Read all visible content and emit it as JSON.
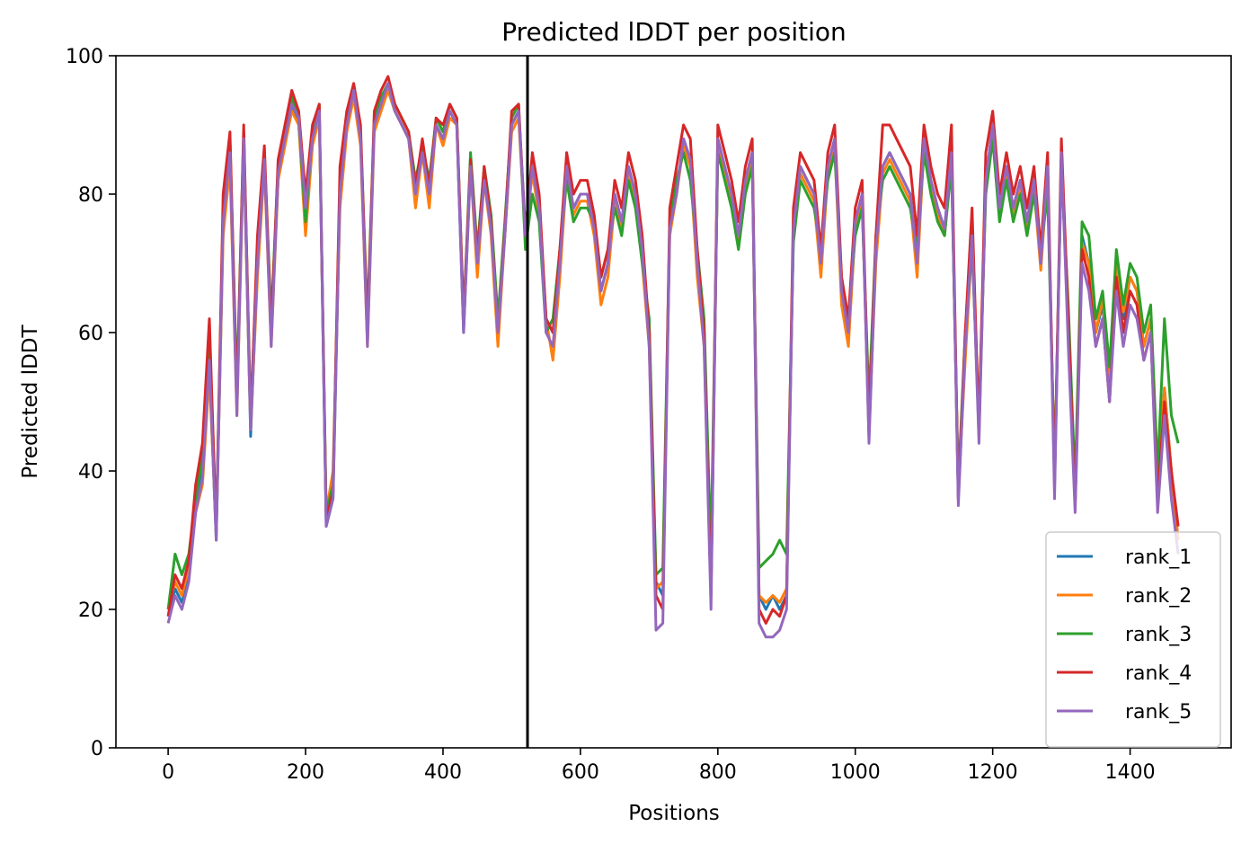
{
  "chart_data": {
    "type": "line",
    "title": "Predicted lDDT per position",
    "xlabel": "Positions",
    "ylabel": "Predicted lDDT",
    "xlim": [
      -76,
      1547
    ],
    "ylim": [
      0,
      100
    ],
    "xticks": [
      0,
      200,
      400,
      600,
      800,
      1000,
      1200,
      1400
    ],
    "yticks": [
      0,
      20,
      40,
      60,
      80,
      100
    ],
    "grid": false,
    "legend_position": "lower right",
    "vline_x": 523,
    "x": [
      0,
      10,
      20,
      30,
      40,
      50,
      60,
      70,
      80,
      90,
      100,
      110,
      120,
      130,
      140,
      150,
      160,
      170,
      180,
      190,
      200,
      210,
      220,
      230,
      240,
      250,
      260,
      270,
      280,
      290,
      300,
      310,
      320,
      330,
      340,
      350,
      360,
      370,
      380,
      390,
      400,
      410,
      420,
      430,
      440,
      450,
      460,
      470,
      480,
      490,
      500,
      510,
      520,
      530,
      540,
      550,
      560,
      570,
      580,
      590,
      600,
      610,
      620,
      630,
      640,
      650,
      660,
      670,
      680,
      690,
      700,
      710,
      720,
      730,
      740,
      750,
      760,
      770,
      780,
      790,
      800,
      810,
      820,
      830,
      840,
      850,
      860,
      870,
      880,
      890,
      900,
      910,
      920,
      930,
      940,
      950,
      960,
      970,
      980,
      990,
      1000,
      1010,
      1020,
      1030,
      1040,
      1050,
      1060,
      1070,
      1080,
      1090,
      1100,
      1110,
      1120,
      1130,
      1140,
      1150,
      1160,
      1170,
      1180,
      1190,
      1200,
      1210,
      1220,
      1230,
      1240,
      1250,
      1260,
      1270,
      1280,
      1290,
      1300,
      1310,
      1320,
      1330,
      1340,
      1350,
      1360,
      1370,
      1380,
      1390,
      1400,
      1410,
      1420,
      1430,
      1440,
      1450,
      1460,
      1470
    ],
    "series": [
      {
        "name": "rank_1",
        "color": "#1f77b4",
        "values": [
          19,
          23,
          21,
          25,
          35,
          40,
          55,
          30,
          75,
          85,
          50,
          88,
          45,
          70,
          85,
          60,
          82,
          88,
          93,
          90,
          78,
          88,
          92,
          32,
          36,
          80,
          90,
          95,
          88,
          60,
          90,
          93,
          95,
          92,
          90,
          88,
          80,
          86,
          80,
          90,
          88,
          92,
          90,
          60,
          84,
          70,
          82,
          75,
          60,
          74,
          90,
          92,
          75,
          84,
          78,
          62,
          60,
          70,
          84,
          78,
          80,
          80,
          75,
          66,
          70,
          80,
          76,
          84,
          80,
          72,
          60,
          24,
          22,
          75,
          80,
          88,
          85,
          70,
          60,
          22,
          88,
          84,
          80,
          74,
          82,
          86,
          22,
          20,
          22,
          20,
          22,
          75,
          84,
          82,
          80,
          70,
          84,
          88,
          66,
          60,
          76,
          80,
          45,
          72,
          84,
          86,
          84,
          82,
          80,
          70,
          88,
          82,
          78,
          75,
          86,
          36,
          58,
          74,
          45,
          82,
          90,
          78,
          84,
          78,
          82,
          76,
          82,
          70,
          84,
          38,
          86,
          60,
          35,
          74,
          70,
          60,
          64,
          52,
          70,
          62,
          68,
          66,
          58,
          62,
          36,
          52,
          40,
          30
        ]
      },
      {
        "name": "rank_2",
        "color": "#ff7f0e",
        "values": [
          20,
          24,
          22,
          26,
          34,
          38,
          54,
          31,
          74,
          84,
          48,
          87,
          46,
          68,
          84,
          58,
          82,
          87,
          92,
          90,
          74,
          87,
          91,
          34,
          40,
          78,
          89,
          94,
          87,
          58,
          89,
          92,
          95,
          92,
          90,
          88,
          78,
          86,
          78,
          90,
          87,
          91,
          90,
          62,
          84,
          68,
          82,
          74,
          58,
          74,
          89,
          91,
          74,
          83,
          77,
          62,
          56,
          68,
          83,
          77,
          79,
          79,
          74,
          64,
          68,
          79,
          75,
          83,
          79,
          70,
          58,
          23,
          24,
          74,
          80,
          87,
          84,
          68,
          58,
          22,
          87,
          83,
          79,
          73,
          81,
          85,
          22,
          21,
          22,
          21,
          23,
          74,
          83,
          81,
          79,
          68,
          83,
          87,
          64,
          58,
          75,
          79,
          46,
          70,
          83,
          85,
          83,
          81,
          79,
          68,
          87,
          81,
          77,
          74,
          85,
          37,
          56,
          73,
          46,
          81,
          89,
          77,
          83,
          77,
          81,
          75,
          81,
          69,
          83,
          39,
          85,
          62,
          36,
          73,
          70,
          60,
          65,
          53,
          70,
          63,
          68,
          66,
          58,
          62,
          38,
          52,
          40,
          30
        ]
      },
      {
        "name": "rank_3",
        "color": "#2ca02c",
        "values": [
          20,
          28,
          25,
          28,
          36,
          42,
          60,
          32,
          78,
          88,
          52,
          89,
          48,
          72,
          86,
          62,
          84,
          89,
          94,
          91,
          76,
          89,
          93,
          34,
          38,
          82,
          91,
          95,
          89,
          62,
          91,
          94,
          96,
          93,
          91,
          89,
          82,
          87,
          82,
          91,
          89,
          93,
          91,
          62,
          86,
          72,
          84,
          77,
          62,
          76,
          91,
          93,
          72,
          80,
          76,
          60,
          62,
          72,
          82,
          76,
          78,
          78,
          76,
          68,
          72,
          78,
          74,
          82,
          78,
          70,
          62,
          25,
          26,
          76,
          82,
          86,
          82,
          72,
          62,
          28,
          86,
          82,
          78,
          72,
          80,
          84,
          26,
          27,
          28,
          30,
          28,
          73,
          82,
          80,
          78,
          72,
          82,
          86,
          68,
          62,
          74,
          78,
          50,
          74,
          82,
          84,
          82,
          80,
          78,
          72,
          86,
          80,
          76,
          74,
          84,
          38,
          60,
          72,
          48,
          80,
          88,
          76,
          82,
          76,
          80,
          74,
          80,
          72,
          80,
          40,
          84,
          64,
          38,
          76,
          74,
          62,
          66,
          55,
          72,
          64,
          70,
          68,
          60,
          64,
          40,
          62,
          48,
          44
        ]
      },
      {
        "name": "rank_4",
        "color": "#d62728",
        "values": [
          19,
          25,
          23,
          27,
          38,
          44,
          62,
          31,
          80,
          89,
          50,
          90,
          47,
          74,
          87,
          60,
          85,
          90,
          95,
          92,
          80,
          90,
          93,
          33,
          37,
          84,
          92,
          96,
          90,
          60,
          92,
          95,
          97,
          93,
          91,
          89,
          81,
          88,
          81,
          91,
          90,
          93,
          91,
          62,
          85,
          71,
          84,
          76,
          60,
          75,
          92,
          93,
          74,
          86,
          80,
          62,
          60,
          72,
          86,
          80,
          82,
          82,
          77,
          68,
          72,
          82,
          78,
          86,
          82,
          74,
          60,
          22,
          20,
          78,
          84,
          90,
          88,
          72,
          60,
          22,
          90,
          86,
          82,
          76,
          84,
          88,
          20,
          18,
          20,
          19,
          22,
          78,
          86,
          84,
          82,
          72,
          86,
          90,
          68,
          62,
          78,
          82,
          46,
          74,
          90,
          90,
          88,
          86,
          84,
          74,
          90,
          84,
          80,
          78,
          90,
          36,
          60,
          78,
          46,
          86,
          92,
          80,
          86,
          80,
          84,
          78,
          84,
          72,
          86,
          38,
          88,
          62,
          35,
          72,
          68,
          58,
          62,
          50,
          68,
          60,
          66,
          64,
          56,
          60,
          36,
          50,
          40,
          32
        ]
      },
      {
        "name": "rank_5",
        "color": "#9467bd",
        "values": [
          18,
          22,
          20,
          24,
          34,
          39,
          56,
          30,
          76,
          86,
          48,
          88,
          46,
          70,
          85,
          58,
          83,
          88,
          93,
          91,
          78,
          88,
          92,
          32,
          36,
          80,
          90,
          95,
          88,
          58,
          90,
          93,
          96,
          92,
          90,
          88,
          80,
          86,
          80,
          90,
          88,
          92,
          90,
          60,
          84,
          70,
          82,
          75,
          60,
          74,
          90,
          92,
          74,
          84,
          78,
          60,
          58,
          70,
          84,
          78,
          80,
          80,
          75,
          66,
          70,
          80,
          76,
          84,
          80,
          72,
          58,
          17,
          18,
          75,
          80,
          88,
          85,
          70,
          58,
          20,
          88,
          84,
          80,
          74,
          82,
          86,
          18,
          16,
          16,
          17,
          20,
          75,
          84,
          82,
          80,
          70,
          84,
          88,
          66,
          60,
          76,
          80,
          44,
          72,
          84,
          86,
          84,
          82,
          80,
          70,
          88,
          82,
          78,
          75,
          86,
          35,
          58,
          74,
          44,
          82,
          90,
          78,
          84,
          78,
          82,
          76,
          82,
          70,
          84,
          36,
          86,
          58,
          34,
          70,
          66,
          58,
          62,
          50,
          66,
          58,
          64,
          62,
          56,
          60,
          34,
          48,
          36,
          28
        ]
      }
    ]
  }
}
